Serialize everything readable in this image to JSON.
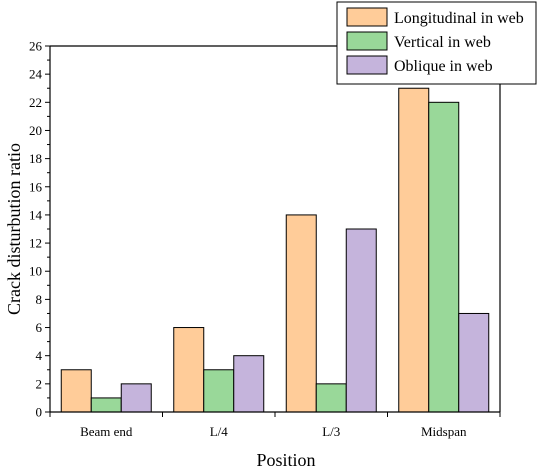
{
  "chart_data": {
    "type": "bar",
    "title": "",
    "xlabel": "Position",
    "ylabel": "Crack disturbution ratio",
    "categories": [
      "Beam end",
      "L/4",
      "L/3",
      "Midspan"
    ],
    "series": [
      {
        "name": "Longitudinal in web",
        "values": [
          3,
          6,
          14,
          23
        ],
        "color": "#FFCC99"
      },
      {
        "name": "Vertical in web",
        "values": [
          1,
          3,
          2,
          22
        ],
        "color": "#99D899"
      },
      {
        "name": "Oblique in web",
        "values": [
          2,
          4,
          13,
          7
        ],
        "color": "#C5B4DC"
      }
    ],
    "ylim": [
      0,
      26
    ],
    "yticks": [
      0,
      2,
      4,
      6,
      8,
      10,
      12,
      14,
      16,
      18,
      20,
      22,
      24,
      26
    ],
    "grid": false,
    "legend_position": "top-right"
  }
}
